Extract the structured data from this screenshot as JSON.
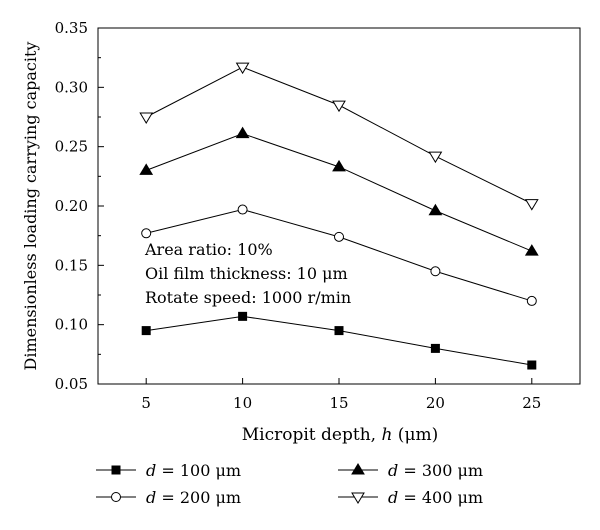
{
  "chart_data": {
    "type": "line",
    "xlabel_prefix": "Micropit depth, ",
    "xlabel_var": "h",
    "xlabel_suffix": " (μm)",
    "ylabel": "Dimensionless loading carrying capacity",
    "x": [
      5,
      10,
      15,
      20,
      25
    ],
    "xlim": [
      2.5,
      27.5
    ],
    "ylim": [
      0.05,
      0.35
    ],
    "x_ticks": [
      "5",
      "10",
      "15",
      "20",
      "25"
    ],
    "y_ticks": [
      "0.05",
      "0.10",
      "0.15",
      "0.20",
      "0.25",
      "0.30",
      "0.35"
    ],
    "grid": false,
    "legend_position": "bottom",
    "series": [
      {
        "name": "d = 100 μm",
        "var": "d",
        "eq": " = 100 μm",
        "marker": "filled-square",
        "values": [
          0.095,
          0.107,
          0.095,
          0.08,
          0.066
        ]
      },
      {
        "name": "d = 200 μm",
        "var": "d",
        "eq": " = 200 μm",
        "marker": "open-circle",
        "values": [
          0.177,
          0.197,
          0.174,
          0.145,
          0.12
        ]
      },
      {
        "name": "d = 300 μm",
        "var": "d",
        "eq": " = 300 μm",
        "marker": "filled-triangle-up",
        "values": [
          0.23,
          0.261,
          0.233,
          0.196,
          0.162
        ]
      },
      {
        "name": "d = 400 μm",
        "var": "d",
        "eq": " = 400 μm",
        "marker": "open-triangle-down",
        "values": [
          0.275,
          0.317,
          0.285,
          0.242,
          0.202
        ]
      }
    ],
    "annotations": [
      "Area ratio: 10%",
      "Oil film thickness: 10 μm",
      "Rotate speed: 1000 r/min"
    ],
    "colors": {
      "line": "#000000",
      "background": "#ffffff"
    }
  }
}
